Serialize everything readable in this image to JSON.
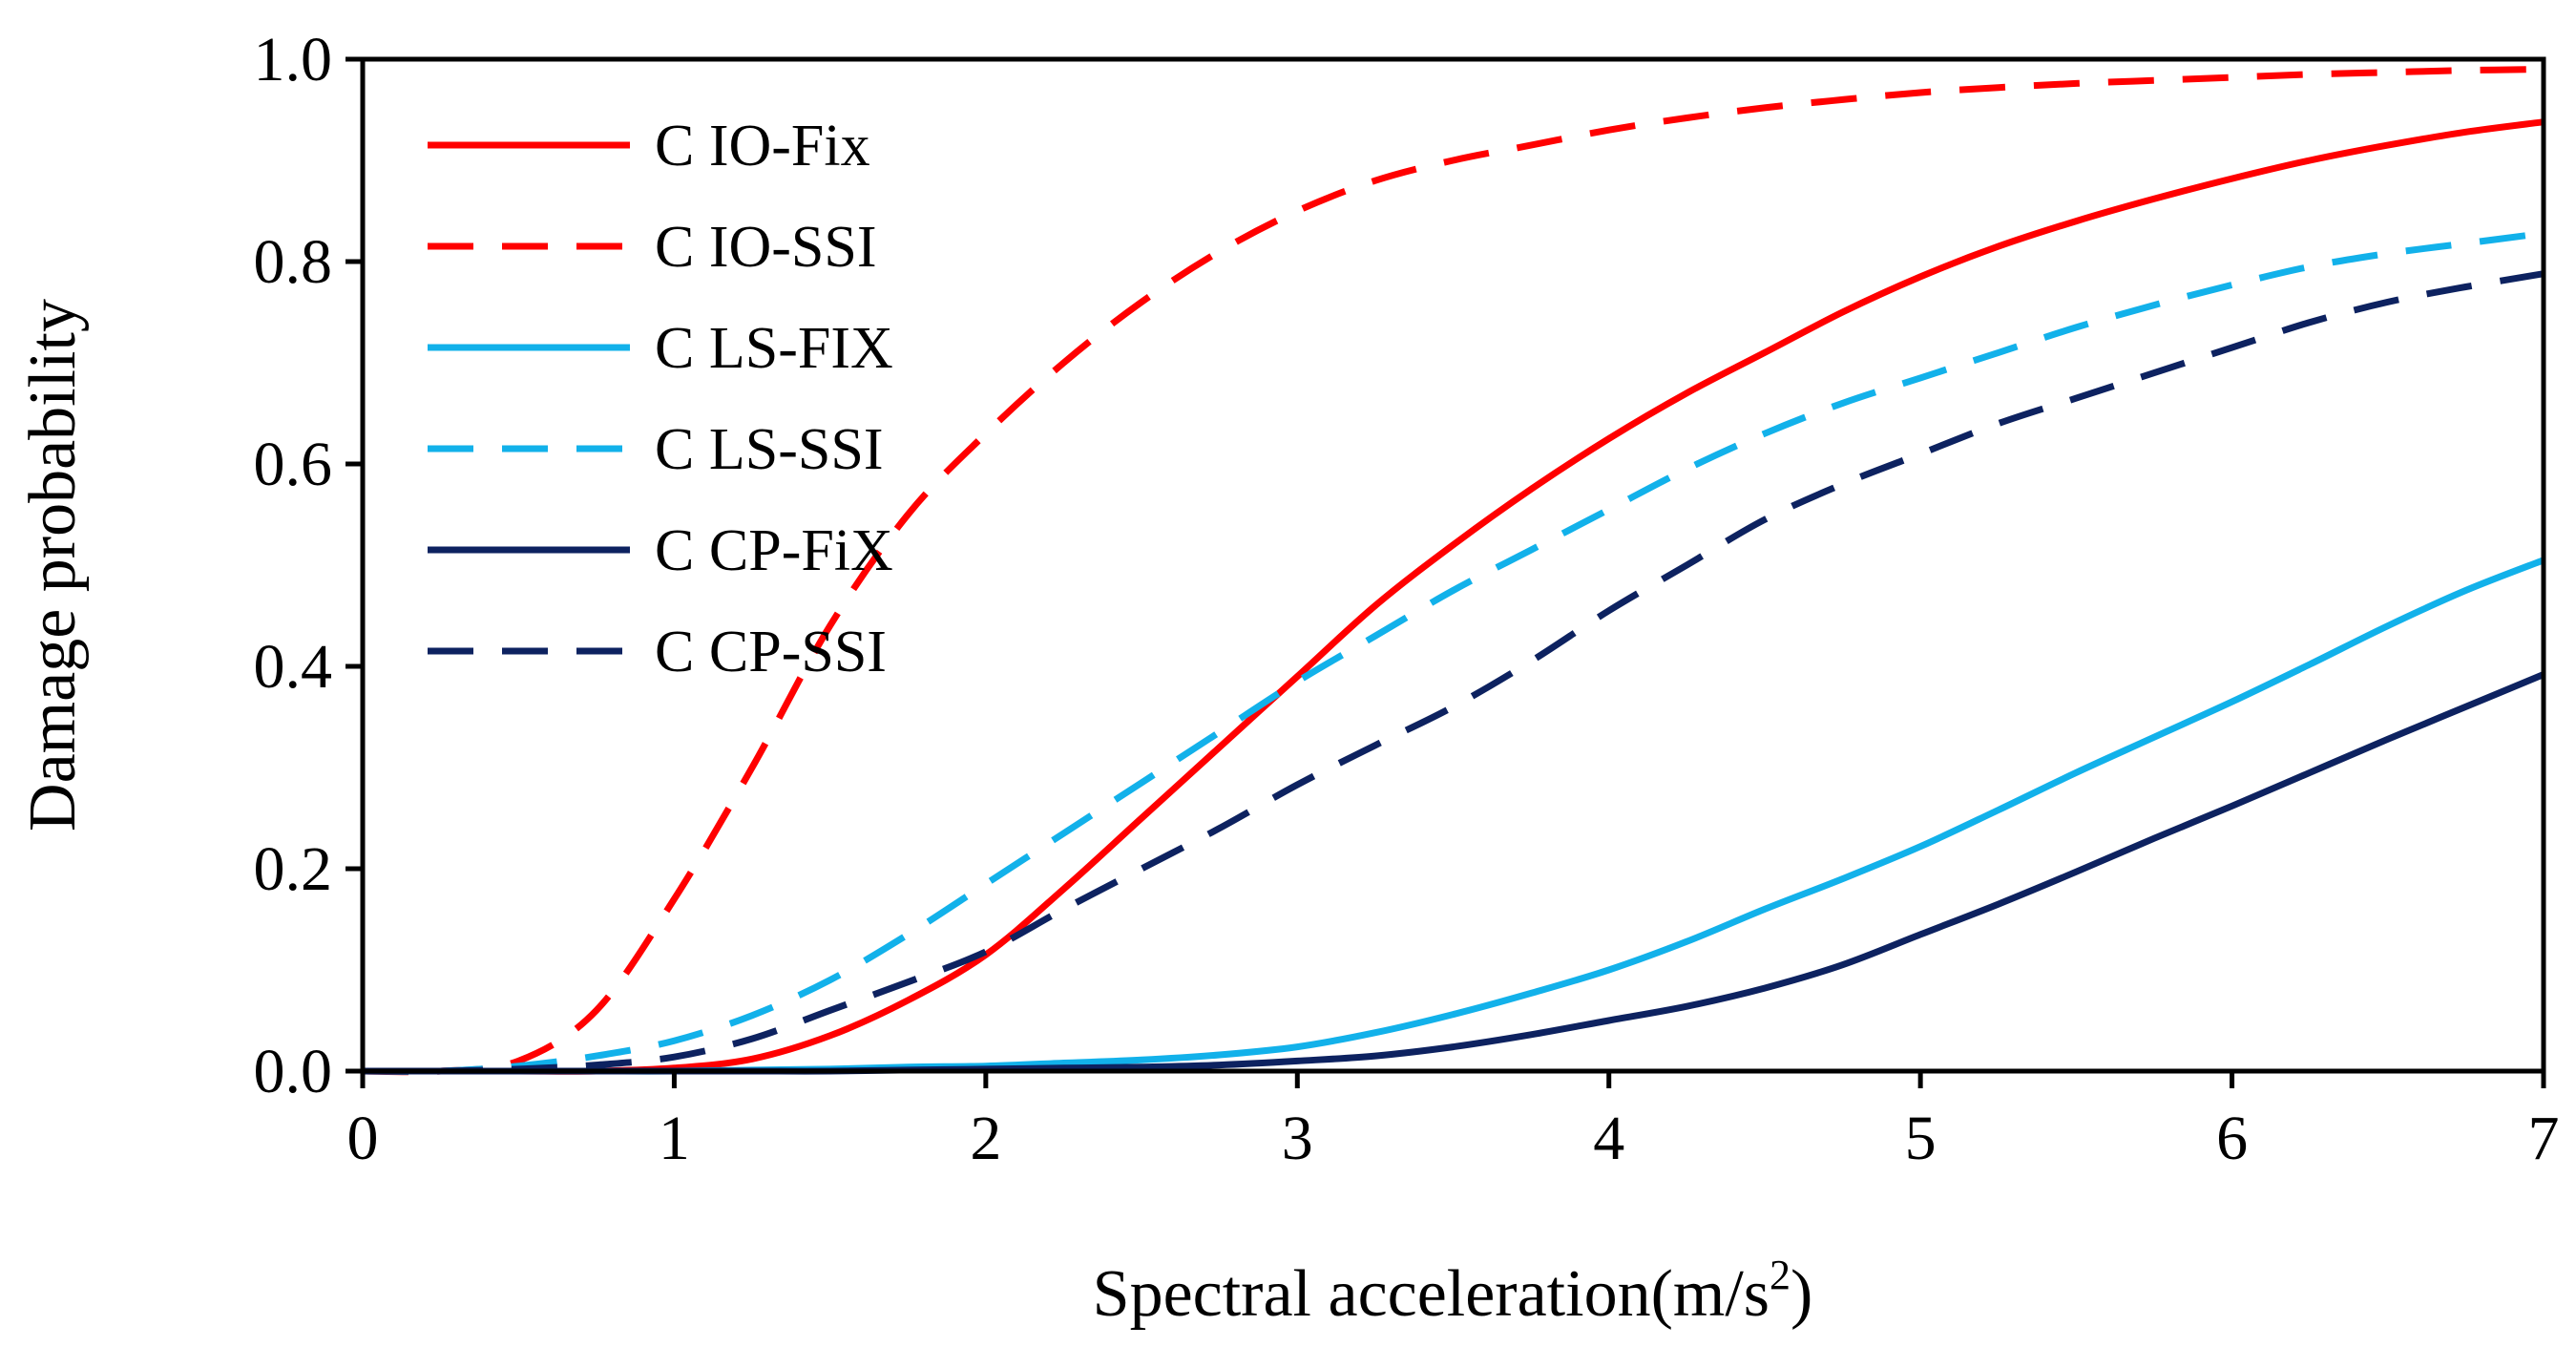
{
  "chart_data": {
    "type": "line",
    "title": "",
    "xlabel": "Spectral acceleration(m/s",
    "xlabel_sup": "2",
    "xlabel_end": ")",
    "ylabel": "Damage probability",
    "xlim": [
      0,
      7
    ],
    "ylim": [
      0,
      1
    ],
    "xticks": [
      0,
      1,
      2,
      3,
      4,
      5,
      6,
      7
    ],
    "xtick_labels": [
      "0",
      "1",
      "2",
      "3",
      "4",
      "5",
      "6",
      "7"
    ],
    "yticks": [
      0.0,
      0.2,
      0.4,
      0.6,
      0.8,
      1.0
    ],
    "ytick_labels": [
      "0.0",
      "0.2",
      "0.4",
      "0.6",
      "0.8",
      "1.0"
    ],
    "grid": false,
    "legend_position": "top-left",
    "x": [
      0,
      0.25,
      0.5,
      0.75,
      1,
      1.25,
      1.5,
      1.75,
      2,
      2.25,
      2.5,
      2.75,
      3,
      3.25,
      3.5,
      3.75,
      4,
      4.25,
      4.5,
      4.75,
      5,
      5.25,
      5.5,
      5.75,
      6,
      6.25,
      6.5,
      6.75,
      7
    ],
    "series": [
      {
        "name": "C IO-Fix",
        "color": "#ff0000",
        "dash": "solid",
        "values": [
          0,
          0,
          0,
          0,
          0.003,
          0.012,
          0.035,
          0.07,
          0.115,
          0.18,
          0.25,
          0.32,
          0.39,
          0.46,
          0.52,
          0.575,
          0.625,
          0.67,
          0.71,
          0.75,
          0.785,
          0.815,
          0.84,
          0.862,
          0.882,
          0.9,
          0.915,
          0.928,
          0.938
        ]
      },
      {
        "name": "C IO-SSI",
        "color": "#ff0000",
        "dash": "dashed",
        "values": [
          0,
          0,
          0.01,
          0.06,
          0.17,
          0.3,
          0.44,
          0.55,
          0.63,
          0.7,
          0.76,
          0.81,
          0.85,
          0.88,
          0.9,
          0.915,
          0.93,
          0.942,
          0.952,
          0.96,
          0.967,
          0.972,
          0.976,
          0.979,
          0.982,
          0.985,
          0.987,
          0.989,
          0.99
        ]
      },
      {
        "name": "C LS-FIX",
        "color": "#12b1ea",
        "dash": "solid",
        "values": [
          0,
          0,
          0,
          0,
          0,
          0.001,
          0.002,
          0.004,
          0.005,
          0.008,
          0.011,
          0.016,
          0.024,
          0.038,
          0.056,
          0.077,
          0.1,
          0.128,
          0.16,
          0.19,
          0.222,
          0.258,
          0.295,
          0.33,
          0.365,
          0.402,
          0.44,
          0.475,
          0.505
        ]
      },
      {
        "name": "C LS-SSI",
        "color": "#12b1ea",
        "dash": "dashed",
        "values": [
          0,
          0,
          0.005,
          0.015,
          0.03,
          0.055,
          0.09,
          0.135,
          0.185,
          0.235,
          0.285,
          0.335,
          0.385,
          0.43,
          0.475,
          0.515,
          0.555,
          0.595,
          0.63,
          0.66,
          0.685,
          0.71,
          0.735,
          0.757,
          0.777,
          0.795,
          0.808,
          0.818,
          0.828
        ]
      },
      {
        "name": "C CP-FiX",
        "color": "#0d2260",
        "dash": "solid",
        "values": [
          0,
          0,
          0,
          0,
          0,
          0,
          0,
          0.001,
          0.002,
          0.003,
          0.004,
          0.006,
          0.01,
          0.015,
          0.024,
          0.036,
          0.05,
          0.064,
          0.082,
          0.105,
          0.135,
          0.165,
          0.197,
          0.23,
          0.262,
          0.295,
          0.328,
          0.36,
          0.392
        ]
      },
      {
        "name": "C CP-SSI",
        "color": "#0d2260",
        "dash": "dashed",
        "values": [
          0,
          0,
          0.002,
          0.006,
          0.014,
          0.032,
          0.06,
          0.088,
          0.118,
          0.16,
          0.2,
          0.24,
          0.283,
          0.322,
          0.36,
          0.405,
          0.455,
          0.5,
          0.545,
          0.58,
          0.61,
          0.64,
          0.665,
          0.69,
          0.715,
          0.74,
          0.76,
          0.775,
          0.788
        ]
      }
    ]
  }
}
